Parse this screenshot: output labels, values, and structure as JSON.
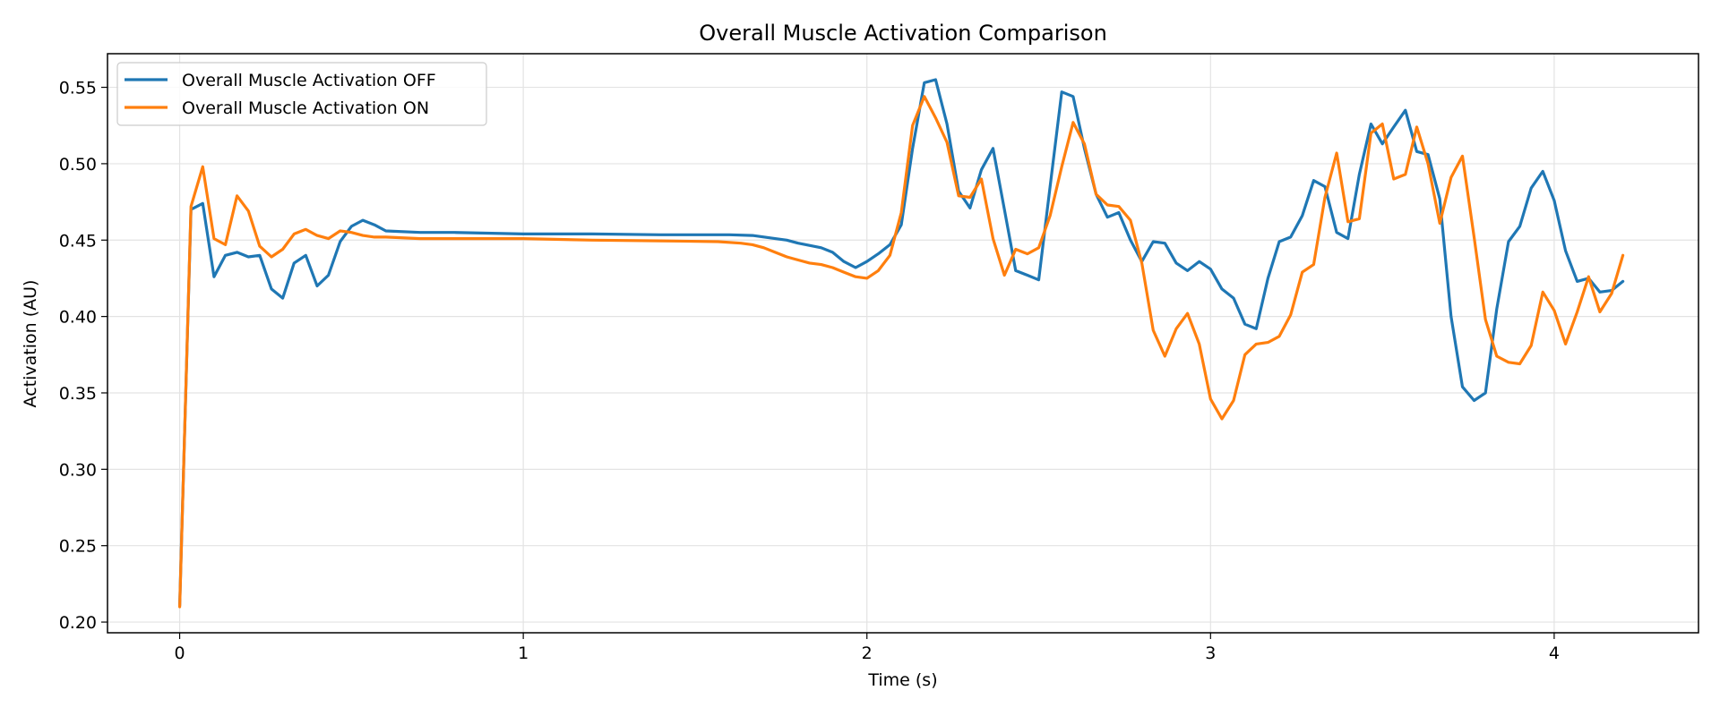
{
  "chart_data": {
    "type": "line",
    "title": "Overall Muscle Activation Comparison",
    "xlabel": "Time (s)",
    "ylabel": "Activation (AU)",
    "xlim": [
      -0.21,
      4.42
    ],
    "ylim": [
      0.193,
      0.572
    ],
    "xticks": [
      0,
      1,
      2,
      3,
      4
    ],
    "xtick_labels": [
      "0",
      "1",
      "2",
      "3",
      "4"
    ],
    "yticks": [
      0.2,
      0.25,
      0.3,
      0.35,
      0.4,
      0.45,
      0.5,
      0.55
    ],
    "ytick_labels": [
      "0.20",
      "0.25",
      "0.30",
      "0.35",
      "0.40",
      "0.45",
      "0.50",
      "0.55"
    ],
    "grid": true,
    "legend_position": "upper-left",
    "series": [
      {
        "name": "Overall Muscle Activation OFF",
        "color": "#1f77b4",
        "points": [
          [
            0.0,
            0.211
          ],
          [
            0.033,
            0.47
          ],
          [
            0.067,
            0.474
          ],
          [
            0.1,
            0.426
          ],
          [
            0.133,
            0.44
          ],
          [
            0.167,
            0.442
          ],
          [
            0.2,
            0.439
          ],
          [
            0.233,
            0.44
          ],
          [
            0.267,
            0.418
          ],
          [
            0.3,
            0.412
          ],
          [
            0.333,
            0.435
          ],
          [
            0.367,
            0.44
          ],
          [
            0.4,
            0.42
          ],
          [
            0.433,
            0.427
          ],
          [
            0.467,
            0.449
          ],
          [
            0.5,
            0.459
          ],
          [
            0.533,
            0.463
          ],
          [
            0.567,
            0.46
          ],
          [
            0.6,
            0.456
          ],
          [
            0.7,
            0.455
          ],
          [
            0.8,
            0.455
          ],
          [
            1.0,
            0.454
          ],
          [
            1.2,
            0.454
          ],
          [
            1.4,
            0.4535
          ],
          [
            1.6,
            0.4535
          ],
          [
            1.667,
            0.453
          ],
          [
            1.733,
            0.451
          ],
          [
            1.767,
            0.45
          ],
          [
            1.8,
            0.448
          ],
          [
            1.867,
            0.445
          ],
          [
            1.9,
            0.442
          ],
          [
            1.933,
            0.436
          ],
          [
            1.967,
            0.432
          ],
          [
            2.0,
            0.436
          ],
          [
            2.033,
            0.441
          ],
          [
            2.067,
            0.447
          ],
          [
            2.1,
            0.46
          ],
          [
            2.133,
            0.51
          ],
          [
            2.167,
            0.553
          ],
          [
            2.2,
            0.555
          ],
          [
            2.233,
            0.526
          ],
          [
            2.267,
            0.482
          ],
          [
            2.3,
            0.471
          ],
          [
            2.333,
            0.496
          ],
          [
            2.367,
            0.51
          ],
          [
            2.4,
            0.47
          ],
          [
            2.433,
            0.43
          ],
          [
            2.467,
            0.427
          ],
          [
            2.5,
            0.424
          ],
          [
            2.533,
            0.485
          ],
          [
            2.567,
            0.547
          ],
          [
            2.6,
            0.544
          ],
          [
            2.633,
            0.51
          ],
          [
            2.667,
            0.48
          ],
          [
            2.7,
            0.465
          ],
          [
            2.733,
            0.468
          ],
          [
            2.767,
            0.45
          ],
          [
            2.8,
            0.436
          ],
          [
            2.833,
            0.449
          ],
          [
            2.867,
            0.448
          ],
          [
            2.9,
            0.435
          ],
          [
            2.933,
            0.43
          ],
          [
            2.967,
            0.436
          ],
          [
            3.0,
            0.431
          ],
          [
            3.033,
            0.418
          ],
          [
            3.067,
            0.412
          ],
          [
            3.1,
            0.395
          ],
          [
            3.133,
            0.392
          ],
          [
            3.167,
            0.425
          ],
          [
            3.2,
            0.449
          ],
          [
            3.233,
            0.452
          ],
          [
            3.267,
            0.466
          ],
          [
            3.3,
            0.489
          ],
          [
            3.333,
            0.485
          ],
          [
            3.367,
            0.455
          ],
          [
            3.4,
            0.451
          ],
          [
            3.433,
            0.493
          ],
          [
            3.467,
            0.526
          ],
          [
            3.5,
            0.513
          ],
          [
            3.533,
            0.524
          ],
          [
            3.567,
            0.535
          ],
          [
            3.6,
            0.508
          ],
          [
            3.633,
            0.506
          ],
          [
            3.667,
            0.477
          ],
          [
            3.7,
            0.4
          ],
          [
            3.733,
            0.354
          ],
          [
            3.767,
            0.345
          ],
          [
            3.8,
            0.35
          ],
          [
            3.833,
            0.405
          ],
          [
            3.867,
            0.449
          ],
          [
            3.9,
            0.459
          ],
          [
            3.933,
            0.484
          ],
          [
            3.967,
            0.495
          ],
          [
            4.0,
            0.476
          ],
          [
            4.033,
            0.443
          ],
          [
            4.067,
            0.423
          ],
          [
            4.1,
            0.425
          ],
          [
            4.133,
            0.416
          ],
          [
            4.167,
            0.417
          ],
          [
            4.2,
            0.423
          ]
        ]
      },
      {
        "name": "Overall Muscle Activation ON",
        "color": "#ff7f0e",
        "points": [
          [
            0.0,
            0.21
          ],
          [
            0.033,
            0.472
          ],
          [
            0.067,
            0.498
          ],
          [
            0.1,
            0.451
          ],
          [
            0.133,
            0.447
          ],
          [
            0.167,
            0.479
          ],
          [
            0.2,
            0.469
          ],
          [
            0.233,
            0.446
          ],
          [
            0.267,
            0.439
          ],
          [
            0.3,
            0.444
          ],
          [
            0.333,
            0.454
          ],
          [
            0.367,
            0.457
          ],
          [
            0.4,
            0.453
          ],
          [
            0.433,
            0.451
          ],
          [
            0.467,
            0.456
          ],
          [
            0.5,
            0.455
          ],
          [
            0.533,
            0.453
          ],
          [
            0.567,
            0.452
          ],
          [
            0.6,
            0.452
          ],
          [
            0.7,
            0.451
          ],
          [
            0.8,
            0.451
          ],
          [
            1.0,
            0.451
          ],
          [
            1.2,
            0.45
          ],
          [
            1.4,
            0.4495
          ],
          [
            1.567,
            0.449
          ],
          [
            1.633,
            0.448
          ],
          [
            1.667,
            0.447
          ],
          [
            1.7,
            0.445
          ],
          [
            1.733,
            0.442
          ],
          [
            1.767,
            0.439
          ],
          [
            1.8,
            0.437
          ],
          [
            1.833,
            0.435
          ],
          [
            1.867,
            0.434
          ],
          [
            1.9,
            0.432
          ],
          [
            1.933,
            0.429
          ],
          [
            1.967,
            0.426
          ],
          [
            2.0,
            0.425
          ],
          [
            2.033,
            0.43
          ],
          [
            2.067,
            0.44
          ],
          [
            2.1,
            0.468
          ],
          [
            2.133,
            0.525
          ],
          [
            2.167,
            0.544
          ],
          [
            2.2,
            0.53
          ],
          [
            2.233,
            0.514
          ],
          [
            2.267,
            0.479
          ],
          [
            2.3,
            0.478
          ],
          [
            2.333,
            0.49
          ],
          [
            2.367,
            0.451
          ],
          [
            2.4,
            0.427
          ],
          [
            2.433,
            0.444
          ],
          [
            2.467,
            0.441
          ],
          [
            2.5,
            0.445
          ],
          [
            2.533,
            0.466
          ],
          [
            2.567,
            0.498
          ],
          [
            2.6,
            0.527
          ],
          [
            2.633,
            0.513
          ],
          [
            2.667,
            0.48
          ],
          [
            2.7,
            0.473
          ],
          [
            2.733,
            0.472
          ],
          [
            2.767,
            0.463
          ],
          [
            2.8,
            0.435
          ],
          [
            2.833,
            0.391
          ],
          [
            2.867,
            0.374
          ],
          [
            2.9,
            0.392
          ],
          [
            2.933,
            0.402
          ],
          [
            2.967,
            0.382
          ],
          [
            3.0,
            0.346
          ],
          [
            3.033,
            0.333
          ],
          [
            3.067,
            0.345
          ],
          [
            3.1,
            0.375
          ],
          [
            3.133,
            0.382
          ],
          [
            3.167,
            0.383
          ],
          [
            3.2,
            0.387
          ],
          [
            3.233,
            0.401
          ],
          [
            3.267,
            0.429
          ],
          [
            3.3,
            0.434
          ],
          [
            3.333,
            0.478
          ],
          [
            3.367,
            0.507
          ],
          [
            3.4,
            0.462
          ],
          [
            3.433,
            0.464
          ],
          [
            3.467,
            0.52
          ],
          [
            3.5,
            0.526
          ],
          [
            3.533,
            0.49
          ],
          [
            3.567,
            0.493
          ],
          [
            3.6,
            0.524
          ],
          [
            3.633,
            0.5
          ],
          [
            3.667,
            0.461
          ],
          [
            3.7,
            0.491
          ],
          [
            3.733,
            0.505
          ],
          [
            3.767,
            0.452
          ],
          [
            3.8,
            0.398
          ],
          [
            3.833,
            0.374
          ],
          [
            3.867,
            0.37
          ],
          [
            3.9,
            0.369
          ],
          [
            3.933,
            0.381
          ],
          [
            3.967,
            0.416
          ],
          [
            4.0,
            0.404
          ],
          [
            4.033,
            0.382
          ],
          [
            4.067,
            0.403
          ],
          [
            4.1,
            0.426
          ],
          [
            4.133,
            0.403
          ],
          [
            4.167,
            0.415
          ],
          [
            4.2,
            0.44
          ]
        ]
      }
    ]
  }
}
